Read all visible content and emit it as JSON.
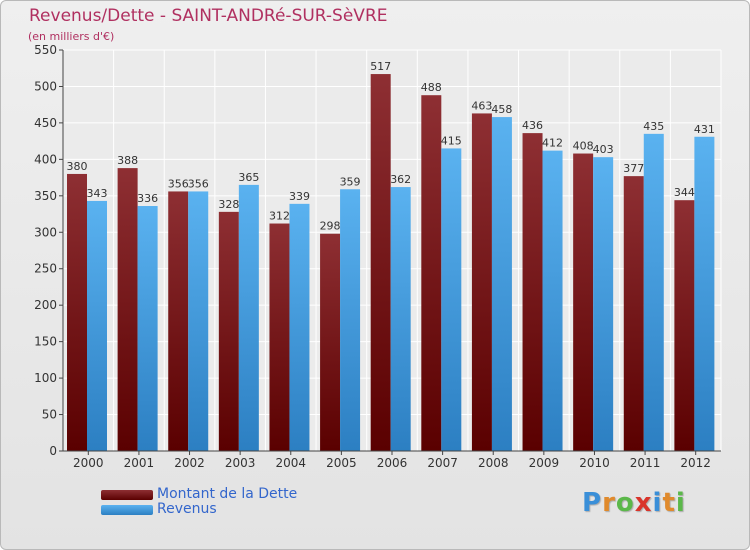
{
  "header": {
    "title": "Revenus/Dette - SAINT-ANDRé-SUR-SèVRE",
    "subtitle": "(en milliers d'€)"
  },
  "legend": {
    "items": [
      {
        "label": "Montant de la Dette",
        "color": "#7a1f22"
      },
      {
        "label": "Revenus",
        "color": "#4aa3e8"
      }
    ]
  },
  "logo": {
    "text": "Proxiti"
  },
  "chart_data": {
    "type": "bar",
    "title": "Revenus/Dette - SAINT-ANDRé-SUR-SèVRE",
    "subtitle": "(en milliers d'€)",
    "xlabel": "",
    "ylabel": "",
    "ylim": [
      0,
      550
    ],
    "yticks": [
      0,
      50,
      100,
      150,
      200,
      250,
      300,
      350,
      400,
      450,
      500,
      550
    ],
    "grid": true,
    "legend_position": "bottom-left",
    "categories": [
      "2000",
      "2001",
      "2002",
      "2003",
      "2004",
      "2005",
      "2006",
      "2007",
      "2008",
      "2009",
      "2010",
      "2011",
      "2012"
    ],
    "series": [
      {
        "name": "Montant de la Dette",
        "color": "#7a1f22",
        "values": [
          380,
          388,
          356,
          328,
          312,
          298,
          517,
          488,
          463,
          436,
          408,
          377,
          344
        ]
      },
      {
        "name": "Revenus",
        "color": "#4aa3e8",
        "values": [
          343,
          336,
          356,
          365,
          339,
          359,
          362,
          415,
          458,
          412,
          403,
          435,
          431
        ]
      }
    ]
  }
}
